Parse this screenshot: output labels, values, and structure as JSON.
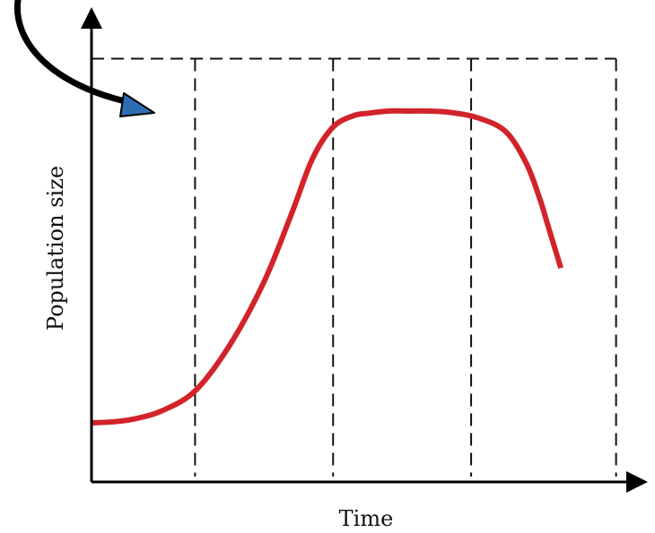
{
  "chart_data": {
    "type": "line",
    "title": "",
    "xlabel": "Time",
    "ylabel": "Population size",
    "grid": false,
    "legend": "none",
    "series": [
      {
        "color": "#d2232a",
        "x": [
          0,
          0.3,
          0.6,
          1.0,
          1.5,
          2.0,
          2.5,
          2.9,
          3.2,
          3.5,
          3.8,
          4.0,
          4.3,
          4.6,
          4.9,
          5.2,
          5.6,
          6.0,
          6.3,
          6.5,
          6.6,
          6.8
        ],
        "y": [
          0.13,
          0.132,
          0.138,
          0.155,
          0.2,
          0.3,
          0.44,
          0.59,
          0.71,
          0.78,
          0.805,
          0.81,
          0.815,
          0.815,
          0.815,
          0.812,
          0.8,
          0.77,
          0.7,
          0.62,
          0.57,
          0.47
        ]
      }
    ],
    "xlim": [
      0,
      7.8
    ],
    "ylim": [
      0,
      1
    ],
    "reference_lines": {
      "vertical_x": [
        1.5,
        3.5,
        5.5,
        7.6
      ],
      "carrying_capacity_y": 0.93,
      "style": "dashed",
      "color": "#111111"
    },
    "arrow": {
      "color": "#000000",
      "head_color": "#2e6db4",
      "points_to": "carrying-capacity-line"
    }
  }
}
